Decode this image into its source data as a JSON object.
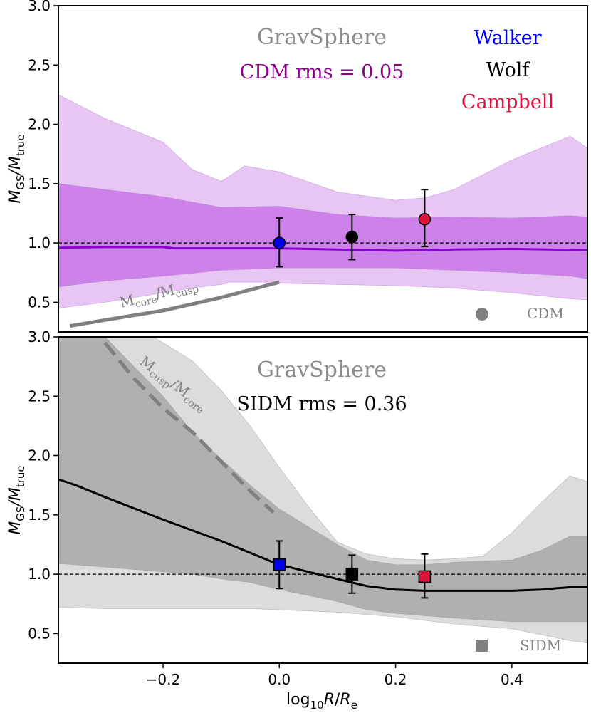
{
  "chart_data": [
    {
      "type": "line",
      "panel": "top",
      "title_label": "GravSphere",
      "rms_label": "CDM rms = 0.05",
      "legend_methods": [
        {
          "name": "Walker",
          "color": "#0000ee"
        },
        {
          "name": "Wolf",
          "color": "#000000"
        },
        {
          "name": "Campbell",
          "color": "#dc143c"
        }
      ],
      "legend_marker_label": "CDM",
      "ylabel_main": "M",
      "ylabel_sub1": "GS",
      "ylabel_mid": "/M",
      "ylabel_sub2": "true",
      "xlim": [
        -0.38,
        0.53
      ],
      "ylim": [
        0.25,
        3.0
      ],
      "yticks": [
        0.5,
        1.0,
        1.5,
        2.0,
        2.5,
        3.0
      ],
      "ytick_labels": [
        "0.5",
        "1.0",
        "1.5",
        "2.0",
        "2.5",
        "3.0"
      ],
      "reference_line": 1.0,
      "colors": {
        "median": "#8b00d4",
        "band_inner": "#cc82e8",
        "band_outer": "#e7c6f4",
        "band_edge": "#b070d0"
      },
      "median": {
        "x": [
          -0.38,
          -0.3,
          -0.2,
          -0.18,
          -0.1,
          0.0,
          0.1,
          0.2,
          0.3,
          0.4,
          0.53
        ],
        "y": [
          0.96,
          0.965,
          0.965,
          0.955,
          0.955,
          0.955,
          0.945,
          0.935,
          0.945,
          0.95,
          0.94
        ]
      },
      "band_inner": {
        "x": [
          -0.38,
          -0.3,
          -0.2,
          -0.1,
          0.0,
          0.1,
          0.2,
          0.3,
          0.4,
          0.5,
          0.53
        ],
        "upper": [
          1.5,
          1.45,
          1.39,
          1.3,
          1.31,
          1.24,
          1.21,
          1.22,
          1.21,
          1.23,
          1.22
        ],
        "lower": [
          0.63,
          0.68,
          0.72,
          0.77,
          0.79,
          0.79,
          0.79,
          0.77,
          0.75,
          0.72,
          0.7
        ]
      },
      "band_outer": {
        "x": [
          -0.38,
          -0.3,
          -0.2,
          -0.15,
          -0.1,
          -0.09,
          -0.06,
          0.0,
          0.1,
          0.2,
          0.25,
          0.3,
          0.4,
          0.5,
          0.53
        ],
        "upper": [
          2.25,
          2.05,
          1.85,
          1.62,
          1.52,
          1.55,
          1.65,
          1.6,
          1.43,
          1.36,
          1.38,
          1.45,
          1.7,
          1.9,
          1.8
        ],
        "lower": [
          0.45,
          0.5,
          0.58,
          0.62,
          0.65,
          0.66,
          0.66,
          0.66,
          0.65,
          0.64,
          0.63,
          0.62,
          0.58,
          0.53,
          0.52
        ]
      },
      "ratio_curve": {
        "label_main": "M",
        "label_sub1": "core",
        "label_mid": "/M",
        "label_sub2": "cusp",
        "color": "#808080",
        "x": [
          -0.36,
          -0.3,
          -0.2,
          -0.1,
          0.0
        ],
        "y": [
          0.3,
          0.35,
          0.43,
          0.54,
          0.67
        ]
      },
      "points": [
        {
          "method": "Walker",
          "x": 0.0,
          "y": 1.0,
          "err_lo": 0.2,
          "err_hi": 0.21,
          "color": "#0000ee"
        },
        {
          "method": "Wolf",
          "x": 0.125,
          "y": 1.05,
          "err_lo": 0.19,
          "err_hi": 0.19,
          "color": "#000000"
        },
        {
          "method": "Campbell",
          "x": 0.25,
          "y": 1.2,
          "err_lo": 0.23,
          "err_hi": 0.25,
          "color": "#dc143c"
        }
      ],
      "marker_shape": "circle"
    },
    {
      "type": "line",
      "panel": "bottom",
      "title_label": "GravSphere",
      "rms_label": "SIDM rms = 0.36",
      "legend_marker_label": "SIDM",
      "ylabel_main": "M",
      "ylabel_sub1": "GS",
      "ylabel_mid": "/M",
      "ylabel_sub2": "true",
      "xlabel_main": "log",
      "xlabel_sub": "10",
      "xlabel_r": "R",
      "xlabel_slash": "/",
      "xlabel_re": "R",
      "xlabel_re_sub": "e",
      "xlim": [
        -0.38,
        0.53
      ],
      "ylim": [
        0.25,
        3.0
      ],
      "xticks": [
        -0.2,
        0.0,
        0.2,
        0.4
      ],
      "xtick_labels": [
        "−0.2",
        "0.0",
        "0.2",
        "0.4"
      ],
      "yticks": [
        0.5,
        1.0,
        1.5,
        2.0,
        2.5,
        3.0
      ],
      "ytick_labels": [
        "0.5",
        "1.0",
        "1.5",
        "2.0",
        "2.5",
        "3.0"
      ],
      "reference_line": 1.0,
      "colors": {
        "median": "#000000",
        "band_inner": "#b0b0b0",
        "band_outer": "#dcdcdc",
        "band_edge": "#909090"
      },
      "median": {
        "x": [
          -0.38,
          -0.35,
          -0.3,
          -0.2,
          -0.1,
          -0.05,
          0.0,
          0.05,
          0.1,
          0.15,
          0.2,
          0.25,
          0.3,
          0.4,
          0.45,
          0.5,
          0.53
        ],
        "y": [
          1.8,
          1.75,
          1.65,
          1.46,
          1.28,
          1.18,
          1.08,
          1.02,
          0.96,
          0.9,
          0.87,
          0.86,
          0.86,
          0.86,
          0.87,
          0.89,
          0.89
        ]
      },
      "band_inner": {
        "x": [
          -0.38,
          -0.3,
          -0.2,
          -0.15,
          -0.1,
          -0.05,
          0.0,
          0.05,
          0.1,
          0.15,
          0.2,
          0.25,
          0.3,
          0.4,
          0.45,
          0.5,
          0.53
        ],
        "upper": [
          3.3,
          3.0,
          2.5,
          2.2,
          1.97,
          1.75,
          1.55,
          1.4,
          1.25,
          1.12,
          1.08,
          1.08,
          1.1,
          1.12,
          1.2,
          1.32,
          1.32
        ],
        "lower": [
          1.09,
          1.06,
          1.02,
          1.0,
          0.96,
          0.93,
          0.87,
          0.82,
          0.77,
          0.7,
          0.67,
          0.65,
          0.63,
          0.6,
          0.6,
          0.6,
          0.6
        ]
      },
      "band_outer": {
        "x": [
          -0.38,
          -0.3,
          -0.25,
          -0.2,
          -0.15,
          -0.1,
          -0.05,
          0.0,
          0.05,
          0.1,
          0.15,
          0.2,
          0.25,
          0.3,
          0.35,
          0.4,
          0.45,
          0.5,
          0.53
        ],
        "upper": [
          3.5,
          3.3,
          3.1,
          2.95,
          2.8,
          2.55,
          2.25,
          1.9,
          1.57,
          1.27,
          1.17,
          1.13,
          1.12,
          1.13,
          1.15,
          1.35,
          1.6,
          1.83,
          1.78
        ],
        "lower": [
          0.72,
          0.71,
          0.71,
          0.71,
          0.71,
          0.71,
          0.71,
          0.7,
          0.69,
          0.68,
          0.66,
          0.64,
          0.61,
          0.58,
          0.56,
          0.54,
          0.49,
          0.44,
          0.42
        ]
      },
      "ratio_curve": {
        "label_main": "M",
        "label_sub1": "cusp",
        "label_mid": "/M",
        "label_sub2": "core",
        "color": "#808080",
        "dashed": true,
        "x": [
          -0.3,
          -0.25,
          -0.2,
          -0.15,
          -0.1,
          -0.05,
          -0.01
        ],
        "y": [
          2.95,
          2.65,
          2.4,
          2.2,
          1.95,
          1.7,
          1.52
        ]
      },
      "points": [
        {
          "method": "Walker",
          "x": 0.0,
          "y": 1.08,
          "err_lo": 0.2,
          "err_hi": 0.2,
          "color": "#0000ee"
        },
        {
          "method": "Wolf",
          "x": 0.125,
          "y": 1.0,
          "err_lo": 0.16,
          "err_hi": 0.16,
          "color": "#000000"
        },
        {
          "method": "Campbell",
          "x": 0.25,
          "y": 0.98,
          "err_lo": 0.18,
          "err_hi": 0.19,
          "color": "#dc143c"
        }
      ],
      "marker_shape": "square"
    }
  ]
}
